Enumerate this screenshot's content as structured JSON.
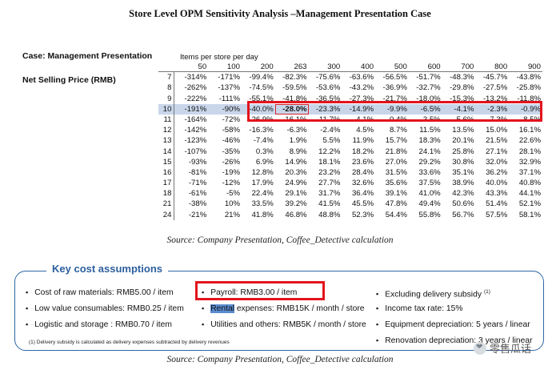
{
  "title": "Store Level OPM Sensitivity Analysis –Management Presentation Case",
  "case_label": "Case: Management Presentation",
  "nsp_label": "Net Selling Price (RMB)",
  "items_label": "Items per store per day",
  "table": {
    "columns": [
      "50",
      "100",
      "200",
      "263",
      "300",
      "400",
      "500",
      "600",
      "700",
      "800",
      "900"
    ],
    "rows": [
      {
        "label": "7",
        "values": [
          "-314%",
          "-171%",
          "-99.4%",
          "-82.3%",
          "-75.6%",
          "-63.6%",
          "-56.5%",
          "-51.7%",
          "-48.3%",
          "-45.7%",
          "-43.8%"
        ]
      },
      {
        "label": "8",
        "values": [
          "-262%",
          "-137%",
          "-74.5%",
          "-59.5%",
          "-53.6%",
          "-43.2%",
          "-36.9%",
          "-32.7%",
          "-29.8%",
          "-27.5%",
          "-25.8%"
        ]
      },
      {
        "label": "9",
        "values": [
          "-222%",
          "-111%",
          "-55.1%",
          "-41.8%",
          "-36.5%",
          "-27.3%",
          "-21.7%",
          "-18.0%",
          "-15.3%",
          "-13.2%",
          "-11.8%"
        ]
      },
      {
        "label": "10",
        "values": [
          "-191%",
          "-90%",
          "-40.0%",
          "-28.0%",
          "-23.3%",
          "-14.9%",
          "-9.9%",
          "-6.5%",
          "-4.1%",
          "-2.3%",
          "-0.9%"
        ]
      },
      {
        "label": "11",
        "values": [
          "-164%",
          "-72%",
          "-26.9%",
          "-16.1%",
          "-11.7%",
          "-4.1%",
          "0.4%",
          "3.5%",
          "5.6%",
          "7.3%",
          "8.5%"
        ]
      },
      {
        "label": "12",
        "values": [
          "-142%",
          "-58%",
          "-16.3%",
          "-6.3%",
          "-2.4%",
          "4.5%",
          "8.7%",
          "11.5%",
          "13.5%",
          "15.0%",
          "16.1%"
        ]
      },
      {
        "label": "13",
        "values": [
          "-123%",
          "-46%",
          "-7.4%",
          "1.9%",
          "5.5%",
          "11.9%",
          "15.7%",
          "18.3%",
          "20.1%",
          "21.5%",
          "22.6%"
        ]
      },
      {
        "label": "14",
        "values": [
          "-107%",
          "-35%",
          "0.3%",
          "8.9%",
          "12.2%",
          "18.2%",
          "21.8%",
          "24.1%",
          "25.8%",
          "27.1%",
          "28.1%"
        ]
      },
      {
        "label": "15",
        "values": [
          "-93%",
          "-26%",
          "6.9%",
          "14.9%",
          "18.1%",
          "23.6%",
          "27.0%",
          "29.2%",
          "30.8%",
          "32.0%",
          "32.9%"
        ]
      },
      {
        "label": "16",
        "values": [
          "-81%",
          "-19%",
          "12.8%",
          "20.3%",
          "23.2%",
          "28.4%",
          "31.5%",
          "33.6%",
          "35.1%",
          "36.2%",
          "37.1%"
        ]
      },
      {
        "label": "17",
        "values": [
          "-71%",
          "-12%",
          "17.9%",
          "24.9%",
          "27.7%",
          "32.6%",
          "35.6%",
          "37.5%",
          "38.9%",
          "40.0%",
          "40.8%"
        ]
      },
      {
        "label": "18",
        "values": [
          "-61%",
          "-5%",
          "22.4%",
          "29.1%",
          "31.7%",
          "36.4%",
          "39.1%",
          "41.0%",
          "42.3%",
          "43.3%",
          "44.1%"
        ]
      },
      {
        "label": "21",
        "values": [
          "-38%",
          "10%",
          "33.5%",
          "39.2%",
          "41.5%",
          "45.5%",
          "47.8%",
          "49.4%",
          "50.6%",
          "51.4%",
          "52.1%"
        ]
      },
      {
        "label": "24",
        "values": [
          "-21%",
          "21%",
          "41.8%",
          "46.8%",
          "48.8%",
          "52.3%",
          "54.4%",
          "55.8%",
          "56.7%",
          "57.5%",
          "58.1%"
        ]
      }
    ],
    "highlight_row": "10",
    "highlight_cell": "-28.0%"
  },
  "caption1": "Source: Company Presentation, Coffee_Detective calculation",
  "assumptions": {
    "title": "Key cost assumptions",
    "col1": [
      "Cost of raw materials: RMB5.00 / item",
      "Low value consumables: RMB0.25 / item",
      "Logistic and storage : RMB0.70 / item"
    ],
    "col2": {
      "payroll": "Payroll: RMB3.00 / item",
      "rental_highlight": "Rental",
      "rental_rest": " expenses: RMB15K / month / store",
      "utilities": "Utilities and others: RMB5K / month / store"
    },
    "col3": {
      "excluding": "Excluding delivery subsidy",
      "excluding_sup": "(1)",
      "tax": "Income tax rate: 15%",
      "equipment": "Equipment depreciation: 5 years / linear",
      "renovation": "Renovation depreciation: 3 years / linear"
    },
    "footnote": "(1) Delivery subsidy is calculated as delivery expenses subtracted by delivery revenues"
  },
  "caption2": "Source: Company Presentation, Coffee_Detective calculation",
  "watermark": "零售瓜话",
  "colors": {
    "highlight_red": "#e3141d",
    "row_highlight": "#c9d6ea",
    "accent_blue": "#2c5f9e"
  }
}
